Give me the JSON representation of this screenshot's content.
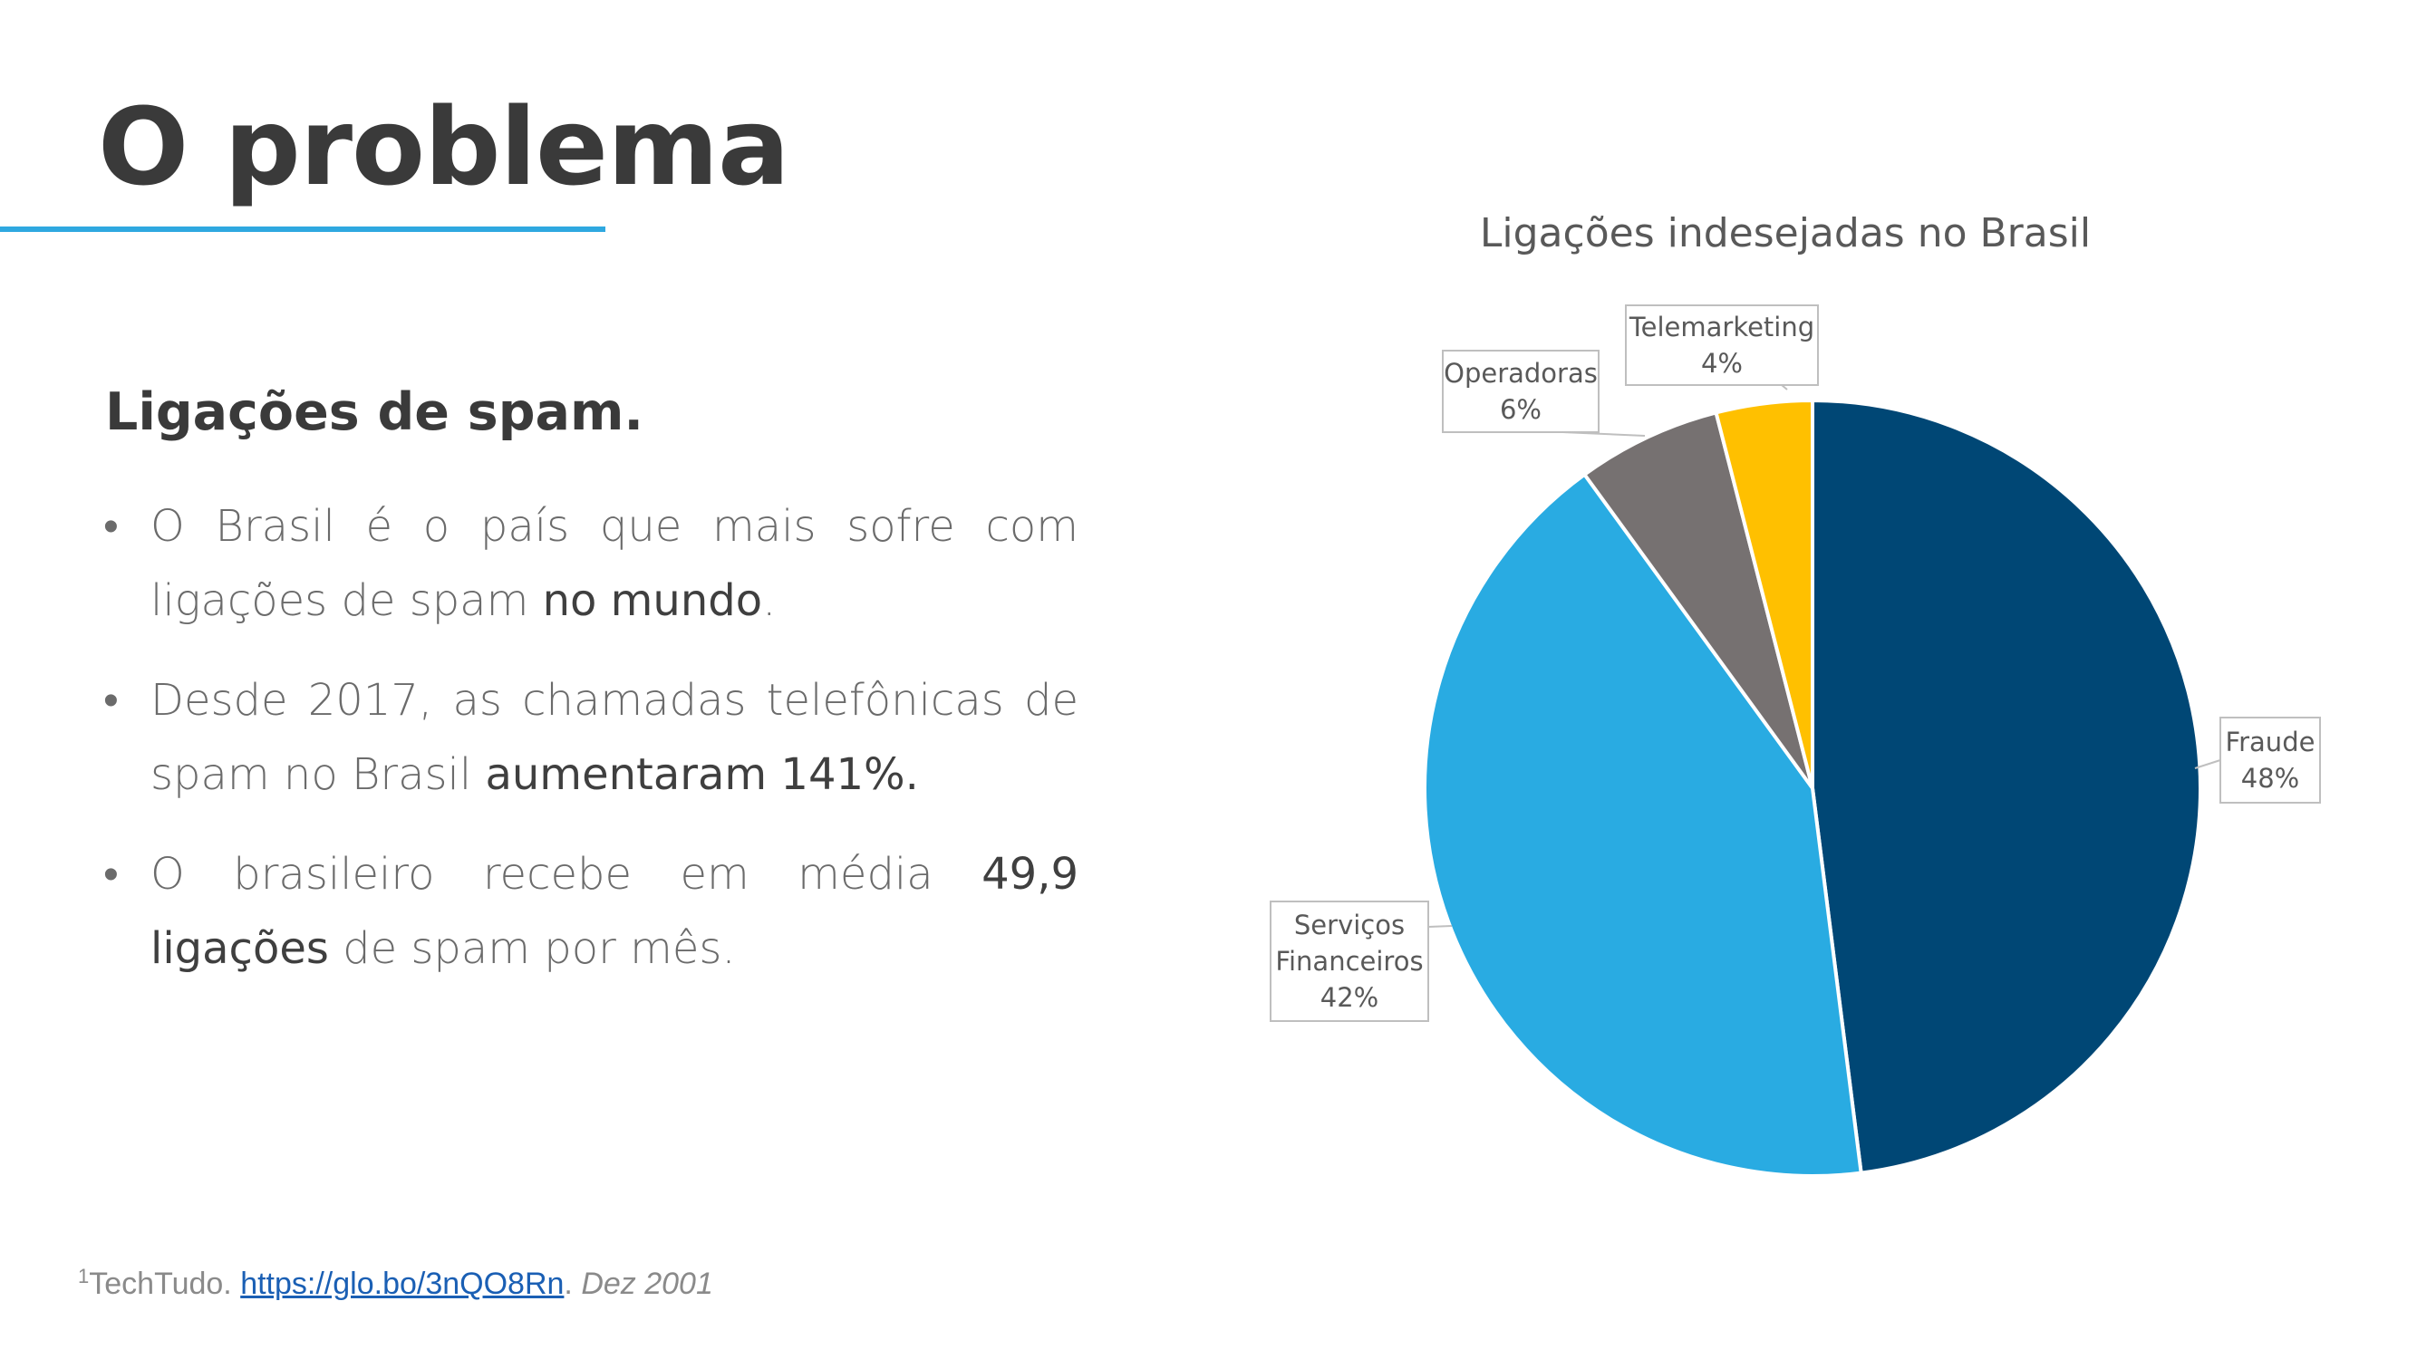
{
  "slide": {
    "title": "O problema",
    "subtitle": "Ligações de spam."
  },
  "bullets": [
    {
      "pre": "O Brasil é o país que mais sofre com ligações de spam ",
      "em": "no mundo",
      "post": "."
    },
    {
      "pre": "Desde 2017, as chamadas telefônicas de spam no Brasil ",
      "em": "aumentaram 141%.",
      "post": ""
    },
    {
      "pre": "O brasileiro recebe em média ",
      "em": "49,9 ligações",
      "post": " de spam por mês."
    }
  ],
  "footnote": {
    "mark": "1",
    "source": "TechTudo. ",
    "link": "https://glo.bo/3nQO8Rn",
    "sep": ". ",
    "date": "Dez 2001"
  },
  "chart_data": {
    "type": "pie",
    "title": "Ligações indesejadas no Brasil",
    "slices": [
      {
        "name": "Fraude",
        "value": 48,
        "label": "48%",
        "color": "#004775"
      },
      {
        "name": "Serviços Financeiros",
        "value": 42,
        "label": "42%",
        "color": "#29abe2"
      },
      {
        "name": "Operadoras",
        "value": 6,
        "label": "6%",
        "color": "#767171"
      },
      {
        "name": "Telemarketing",
        "value": 4,
        "label": "4%",
        "color": "#ffc000"
      }
    ],
    "start_angle_deg": 0,
    "direction": "clockwise",
    "labels": "outside with callout boxes"
  }
}
